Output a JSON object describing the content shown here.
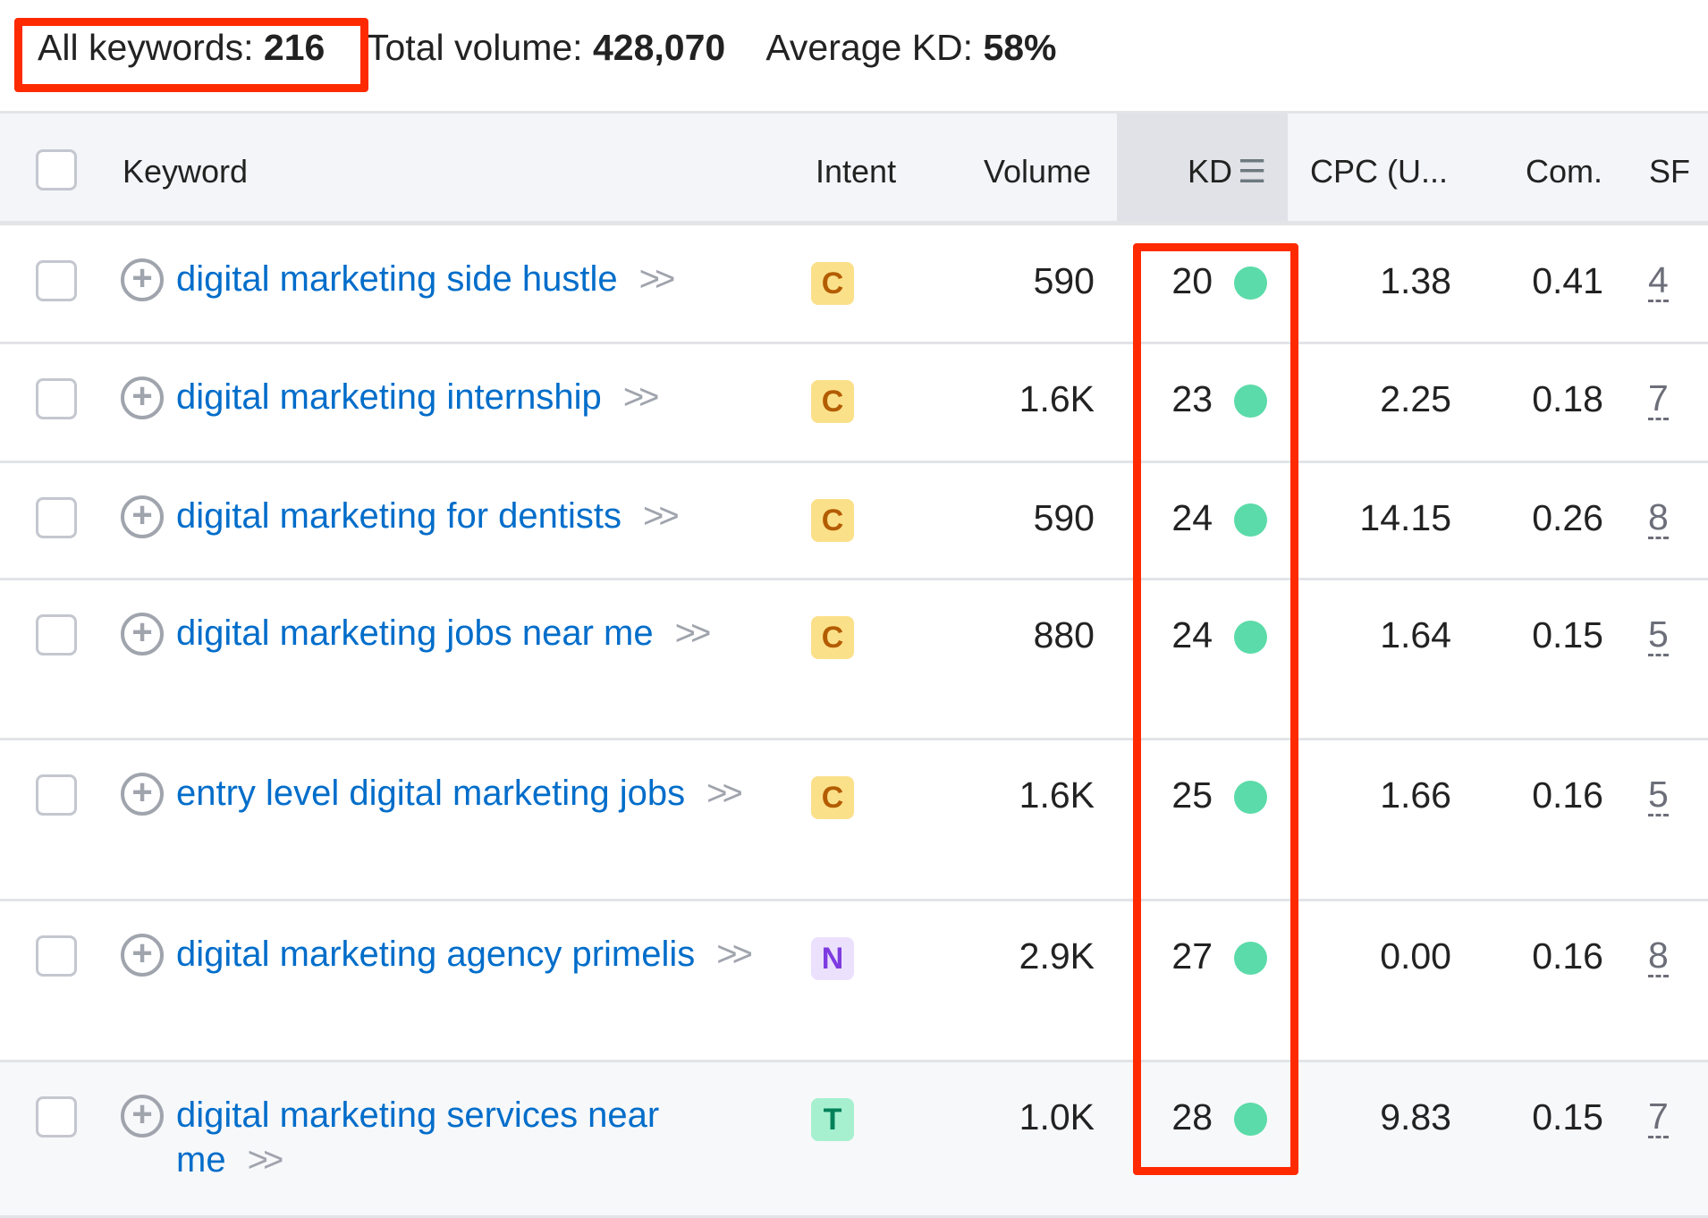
{
  "summary": {
    "all_keywords_label": "All keywords:",
    "all_keywords": "216",
    "total_volume_label": "Total volume:",
    "total_volume": "428,070",
    "avg_kd_label": "Average KD:",
    "avg_kd": "58%"
  },
  "headers": {
    "keyword": "Keyword",
    "intent": "Intent",
    "volume": "Volume",
    "kd": "KD",
    "cpc": "CPC (U...",
    "com": "Com.",
    "sf": "SF"
  },
  "colors": {
    "highlight": "#ff2a00",
    "link": "#006dca",
    "kd_dot": "#5bdba9",
    "intent_C_bg": "#fbe08a",
    "intent_C_fg": "#b35c00",
    "intent_N_bg": "#ece1fd",
    "intent_N_fg": "#7e3ce0",
    "intent_T_bg": "#a6f0cf",
    "intent_T_fg": "#00805a"
  },
  "rows": [
    {
      "keyword": "digital marketing side hustle",
      "intent": "C",
      "volume": "590",
      "kd": "20",
      "cpc": "1.38",
      "com": "0.41",
      "sf": "4"
    },
    {
      "keyword": "digital marketing internship",
      "intent": "C",
      "volume": "1.6K",
      "kd": "23",
      "cpc": "2.25",
      "com": "0.18",
      "sf": "7"
    },
    {
      "keyword": "digital marketing for dentists",
      "intent": "C",
      "volume": "590",
      "kd": "24",
      "cpc": "14.15",
      "com": "0.26",
      "sf": "8"
    },
    {
      "keyword": "digital marketing jobs near me",
      "intent": "C",
      "volume": "880",
      "kd": "24",
      "cpc": "1.64",
      "com": "0.15",
      "sf": "5"
    },
    {
      "keyword": "entry level digital marketing jobs",
      "intent": "C",
      "volume": "1.6K",
      "kd": "25",
      "cpc": "1.66",
      "com": "0.16",
      "sf": "5"
    },
    {
      "keyword": "digital marketing agency primelis",
      "intent": "N",
      "volume": "2.9K",
      "kd": "27",
      "cpc": "0.00",
      "com": "0.16",
      "sf": "8"
    },
    {
      "keyword": "digital marketing services near me",
      "intent": "T",
      "volume": "1.0K",
      "kd": "28",
      "cpc": "9.83",
      "com": "0.15",
      "sf": "7"
    }
  ]
}
